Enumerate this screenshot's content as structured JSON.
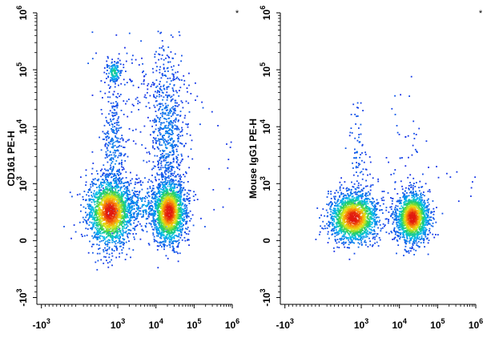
{
  "chart_data": [
    {
      "type": "scatter",
      "subtype": "flow-cytometry-density-plot",
      "corner_mark": "*",
      "ylabel": "CD161 PE-H",
      "xlabel": "",
      "x_scale": "biexponential",
      "y_scale": "biexponential",
      "x_ticks": [
        {
          "base": "-10",
          "exp": "3",
          "value": -1000
        },
        {
          "base": "10",
          "exp": "3",
          "value": 1000
        },
        {
          "base": "10",
          "exp": "4",
          "value": 10000
        },
        {
          "base": "10",
          "exp": "5",
          "value": 100000
        },
        {
          "base": "10",
          "exp": "6",
          "value": 1000000
        }
      ],
      "y_ticks": [
        {
          "base": "-10",
          "exp": "3",
          "value": -1000
        },
        {
          "base": "0",
          "exp": "",
          "value": 0
        },
        {
          "base": "10",
          "exp": "3",
          "value": 1000
        },
        {
          "base": "10",
          "exp": "4",
          "value": 10000
        },
        {
          "base": "10",
          "exp": "5",
          "value": 100000
        },
        {
          "base": "10",
          "exp": "6",
          "value": 1000000
        }
      ],
      "populations": [
        {
          "x": 800,
          "y": 500,
          "density": "high"
        },
        {
          "x": 22000,
          "y": 500,
          "density": "high"
        },
        {
          "x": 900,
          "y": 90000,
          "density": "medium"
        },
        {
          "x": 20000,
          "y": 8000,
          "density": "low"
        },
        {
          "x": 900,
          "y": 3000,
          "density": "low"
        }
      ]
    },
    {
      "type": "scatter",
      "subtype": "flow-cytometry-density-plot",
      "corner_mark": "*",
      "ylabel": "Mouse IgG1 PE-H",
      "xlabel": "",
      "x_scale": "biexponential",
      "y_scale": "biexponential",
      "x_ticks": [
        {
          "base": "-10",
          "exp": "3",
          "value": -1000
        },
        {
          "base": "10",
          "exp": "3",
          "value": 1000
        },
        {
          "base": "10",
          "exp": "4",
          "value": 10000
        },
        {
          "base": "10",
          "exp": "5",
          "value": 100000
        },
        {
          "base": "10",
          "exp": "6",
          "value": 1000000
        }
      ],
      "y_ticks": [
        {
          "base": "-10",
          "exp": "3",
          "value": -1000
        },
        {
          "base": "0",
          "exp": "",
          "value": 0
        },
        {
          "base": "10",
          "exp": "3",
          "value": 1000
        },
        {
          "base": "10",
          "exp": "4",
          "value": 10000
        },
        {
          "base": "10",
          "exp": "5",
          "value": 100000
        },
        {
          "base": "10",
          "exp": "6",
          "value": 1000000
        }
      ],
      "populations": [
        {
          "x": 800,
          "y": 400,
          "density": "high"
        },
        {
          "x": 22000,
          "y": 400,
          "density": "high"
        },
        {
          "x": 900,
          "y": 3000,
          "density": "low"
        }
      ]
    }
  ]
}
